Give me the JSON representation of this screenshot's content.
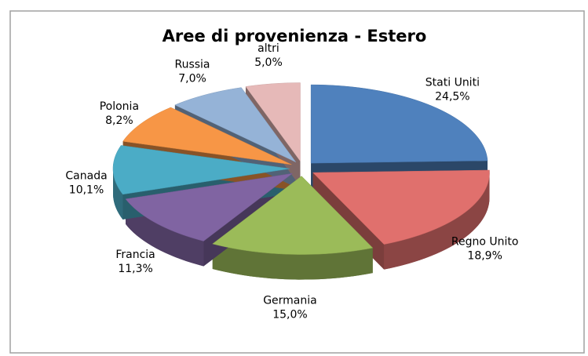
{
  "chart_data": {
    "type": "pie",
    "title": "Aree di provenienza - Estero",
    "categories": [
      "Stati Uniti",
      "Regno Unito",
      "Germania",
      "Francia",
      "Canada",
      "Polonia",
      "Russia",
      "altri"
    ],
    "values": [
      24.5,
      18.9,
      15.0,
      11.3,
      10.1,
      8.2,
      7.0,
      5.0
    ],
    "value_labels": [
      "24,5%",
      "18,9%",
      "15,0%",
      "11,3%",
      "10,1%",
      "8,2%",
      "7,0%",
      "5,0%"
    ],
    "colors": [
      "#4f81bd",
      "#e0706d",
      "#9bbb59",
      "#8064a2",
      "#4bacc6",
      "#f79646",
      "#95b3d7",
      "#e6b9b8"
    ]
  }
}
